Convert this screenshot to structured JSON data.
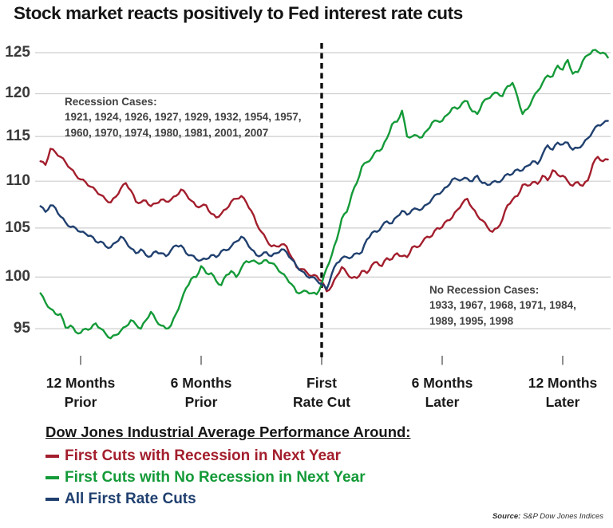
{
  "title": "Stock market reacts positively to Fed interest rate cuts",
  "annotations": {
    "recession": {
      "heading": "Recession Cases:",
      "lines": [
        "1921, 1924, 1926, 1927, 1929, 1932, 1954, 1957,",
        "1960, 1970, 1974, 1980, 1981, 2001, 2007"
      ]
    },
    "no_recession": {
      "heading": "No Recession Cases:",
      "lines": [
        "1933, 1967, 1968, 1971, 1984,",
        "1989, 1995, 1998"
      ]
    }
  },
  "legend": {
    "heading": "Dow Jones Industrial Average Performance Around:"
  },
  "source": {
    "label": "Source:",
    "text": "S&P Dow Jones Indices"
  },
  "chart_data": {
    "type": "line",
    "title": "Stock market reacts positively to Fed interest rate cuts",
    "x_axis": {
      "unit": "months relative to first rate cut",
      "tick_months": [
        -12,
        -6,
        0,
        6,
        12
      ],
      "tick_labels": [
        [
          "12 Months",
          "Prior"
        ],
        [
          "6 Months",
          "Prior"
        ],
        [
          "First",
          "Rate Cut"
        ],
        [
          "6 Months",
          "Later"
        ],
        [
          "12 Months",
          "Later"
        ]
      ]
    },
    "y_axis": {
      "ticks": [
        95,
        100,
        105,
        110,
        115,
        120,
        125
      ],
      "scale": "log",
      "index_base": 100
    },
    "dashed_line_month": 0,
    "x_start_month": -14,
    "x_step_month": 0.25,
    "series": [
      {
        "name": "First Cuts with Recession in Next Year",
        "color": "#A31E2D",
        "values": [
          112.2,
          111.8,
          113.6,
          113.2,
          112.7,
          112.1,
          111.4,
          110.7,
          110.2,
          109.9,
          109.4,
          109.0,
          108.5,
          108.0,
          107.7,
          108.3,
          109.2,
          109.8,
          109.0,
          107.8,
          107.7,
          107.9,
          107.3,
          107.6,
          108.0,
          107.8,
          108.0,
          108.4,
          109.1,
          108.6,
          107.9,
          107.3,
          107.3,
          107.4,
          106.5,
          106.1,
          106.5,
          107.0,
          107.8,
          108.1,
          108.4,
          107.7,
          106.8,
          105.5,
          104.6,
          103.8,
          103.1,
          103.1,
          103.3,
          103.1,
          102.0,
          101.0,
          100.8,
          100.5,
          100.1,
          100.1,
          99.6,
          98.6,
          99.1,
          100.1,
          101.0,
          100.4,
          99.9,
          99.9,
          100.6,
          100.4,
          101.2,
          101.5,
          101.1,
          101.9,
          101.8,
          102.4,
          102.1,
          102.0,
          103.0,
          103.0,
          103.5,
          104.1,
          104.2,
          105.0,
          105.1,
          105.8,
          106.1,
          106.9,
          107.6,
          108.1,
          107.1,
          106.3,
          105.8,
          105.1,
          104.6,
          105.0,
          105.9,
          107.4,
          108.0,
          108.4,
          109.6,
          109.5,
          109.9,
          109.7,
          110.6,
          110.1,
          111.2,
          110.7,
          110.6,
          110.0,
          109.5,
          109.9,
          109.5,
          110.1,
          111.9,
          112.7,
          112.2,
          112.4
        ]
      },
      {
        "name": "First Cuts with No Recession in Next Year",
        "color": "#149A38",
        "values": [
          98.4,
          97.5,
          96.9,
          96.4,
          96.4,
          95.1,
          95.3,
          94.7,
          94.6,
          95.0,
          95.0,
          95.5,
          95.0,
          94.5,
          94.1,
          94.4,
          94.8,
          95.2,
          95.8,
          95.4,
          95.0,
          95.8,
          96.6,
          95.8,
          95.3,
          95.0,
          95.3,
          96.4,
          97.6,
          98.9,
          99.8,
          100.0,
          101.1,
          100.4,
          100.4,
          99.6,
          99.2,
          100.2,
          100.6,
          100.0,
          100.9,
          101.6,
          101.6,
          101.5,
          101.4,
          101.7,
          101.4,
          101.0,
          100.4,
          99.9,
          99.3,
          98.5,
          98.5,
          98.6,
          98.4,
          98.3,
          99.3,
          100.9,
          102.2,
          103.8,
          106.0,
          106.7,
          108.6,
          109.8,
          111.6,
          112.1,
          112.6,
          113.4,
          113.6,
          114.8,
          116.4,
          116.7,
          118.0,
          115.0,
          115.0,
          115.1,
          114.9,
          115.7,
          116.6,
          116.8,
          116.8,
          117.5,
          118.3,
          118.2,
          118.9,
          119.1,
          117.9,
          117.6,
          118.9,
          119.4,
          119.9,
          120.1,
          119.7,
          120.9,
          121.3,
          119.6,
          117.6,
          118.2,
          119.4,
          120.3,
          121.3,
          122.2,
          122.1,
          123.4,
          122.9,
          124.1,
          122.4,
          122.6,
          124.0,
          124.7,
          125.3,
          125.1,
          125.0,
          124.4
        ]
      },
      {
        "name": "All First Rate Cuts",
        "color": "#20406F",
        "values": [
          107.3,
          106.7,
          107.4,
          107.1,
          106.2,
          105.6,
          105.1,
          105.0,
          104.6,
          104.4,
          104.2,
          103.6,
          103.6,
          103.1,
          103.0,
          103.5,
          104.1,
          103.6,
          102.9,
          102.4,
          102.8,
          102.2,
          102.1,
          102.6,
          102.4,
          102.1,
          102.7,
          103.2,
          103.2,
          102.4,
          102.2,
          101.8,
          101.7,
          101.8,
          102.2,
          102.0,
          102.6,
          102.7,
          103.1,
          103.6,
          104.1,
          103.6,
          102.8,
          102.2,
          102.2,
          102.5,
          102.1,
          102.4,
          102.8,
          102.5,
          101.8,
          101.1,
          100.6,
          100.1,
          100.0,
          99.7,
          99.3,
          98.8,
          100.3,
          101.4,
          101.9,
          102.0,
          102.0,
          102.4,
          102.5,
          103.8,
          104.5,
          104.6,
          105.2,
          105.7,
          105.5,
          106.2,
          106.8,
          106.4,
          106.9,
          107.0,
          107.0,
          107.5,
          108.1,
          108.6,
          108.9,
          109.4,
          110.2,
          110.2,
          110.2,
          110.3,
          110.0,
          110.6,
          109.8,
          109.6,
          109.9,
          109.9,
          110.2,
          110.8,
          110.8,
          111.3,
          111.2,
          111.7,
          112.2,
          111.9,
          113.0,
          114.0,
          113.5,
          114.3,
          114.1,
          114.3,
          113.5,
          113.7,
          114.1,
          114.8,
          115.6,
          116.3,
          116.5,
          116.8
        ]
      }
    ]
  }
}
